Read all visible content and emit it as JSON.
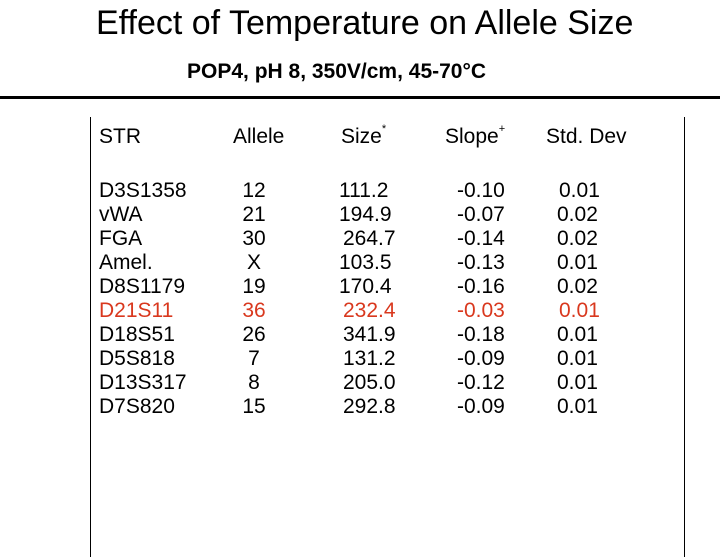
{
  "title": "Effect of Temperature on Allele Size",
  "subtitle": "POP4, pH 8, 350V/cm, 45-70°C",
  "headers": {
    "str": "STR",
    "allele": "Allele",
    "size": "Size",
    "size_mark": "*",
    "slope": "Slope",
    "slope_mark": "+",
    "stddev": "Std. Dev"
  },
  "rows": [
    {
      "str": "D3S1358",
      "allele": "12",
      "size": "111.2",
      "slope": "-0.10",
      "sd": "0.01"
    },
    {
      "str": "vWA",
      "allele": "21",
      "size": "194.9",
      "slope": "-0.07",
      "sd": "0.02"
    },
    {
      "str": "FGA",
      "allele": "30",
      "size": "264.7",
      "slope": "-0.14",
      "sd": "0.02"
    },
    {
      "str": "Amel.",
      "allele": "X",
      "size": "103.5",
      "slope": "-0.13",
      "sd": "0.01"
    },
    {
      "str": "D8S1179",
      "allele": "19",
      "size": "170.4",
      "slope": "-0.16",
      "sd": "0.02"
    },
    {
      "str": "D21S11",
      "allele": "36",
      "size": "232.4",
      "slope": "-0.03",
      "sd": "0.01",
      "highlight": "#d9381e"
    },
    {
      "str": "D18S51",
      "allele": "26",
      "size": "341.9",
      "slope": "-0.18",
      "sd": "0.01"
    },
    {
      "str": "D5S818",
      "allele": "7",
      "size": "131.2",
      "slope": "-0.09",
      "sd": "0.01"
    },
    {
      "str": "D13S317",
      "allele": "8",
      "size": "205.0",
      "slope": "-0.12",
      "sd": "0.01"
    },
    {
      "str": "D7S820",
      "allele": "15",
      "size": "292.8",
      "slope": "-0.09",
      "sd": "0.01"
    }
  ]
}
